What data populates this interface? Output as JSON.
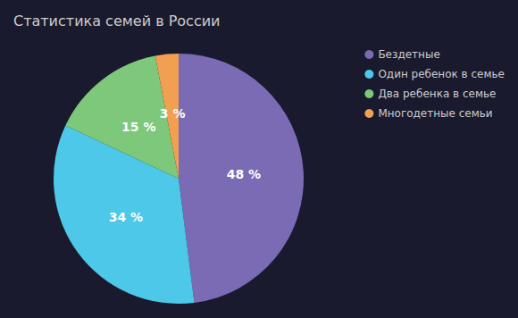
{
  "chart_data": {
    "type": "pie",
    "title": "Статистика семей в России",
    "categories": [
      "Бездетные",
      "Один ребенок в семье",
      "Два ребенка в семье",
      "Многодетные семьи"
    ],
    "values": [
      48,
      34,
      15,
      3
    ],
    "value_labels": [
      "48 %",
      "34 %",
      "15 %",
      "3 %"
    ],
    "colors": [
      "#7b6bb5",
      "#4dc8e8",
      "#7dc87a",
      "#f0a050"
    ],
    "data_labels": true,
    "legend": "upper right"
  }
}
